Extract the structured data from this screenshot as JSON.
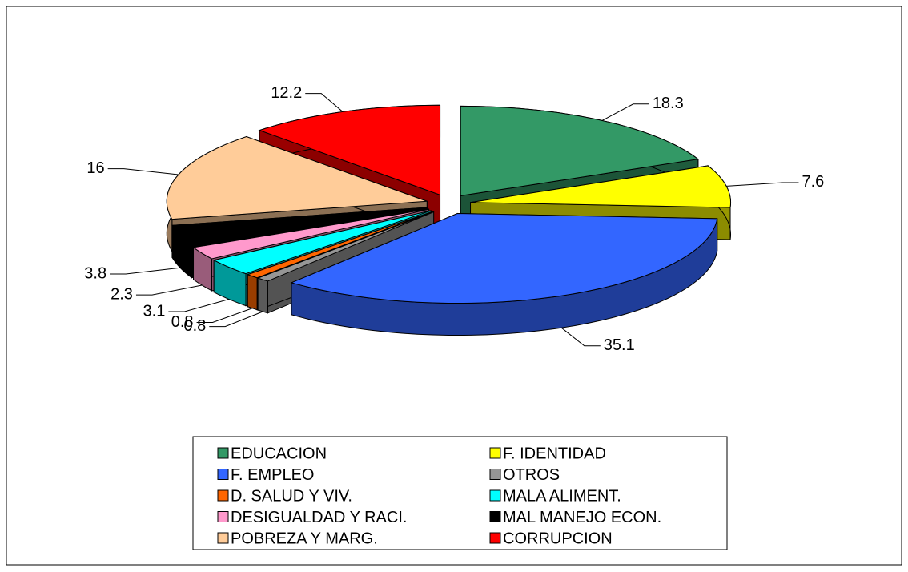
{
  "chart_data": {
    "type": "pie",
    "categories": [
      "EDUCACION",
      "F. IDENTIDAD",
      "F. EMPLEO",
      "OTROS",
      "D. SALUD Y VIV.",
      "MALA ALIMENT.",
      "DESIGUALDAD Y RACI.",
      "MAL MANEJO ECON.",
      "POBREZA Y MARG.",
      "CORRUPCION"
    ],
    "values": [
      18.3,
      7.6,
      35.1,
      0.8,
      0.8,
      3.1,
      2.3,
      3.8,
      16,
      12.2
    ],
    "colors": [
      "#339966",
      "#ffff00",
      "#3366ff",
      "#969696",
      "#ff6600",
      "#00ffff",
      "#ff99cc",
      "#000000",
      "#ffcc99",
      "#ff0000"
    ],
    "legend": "bottom"
  }
}
